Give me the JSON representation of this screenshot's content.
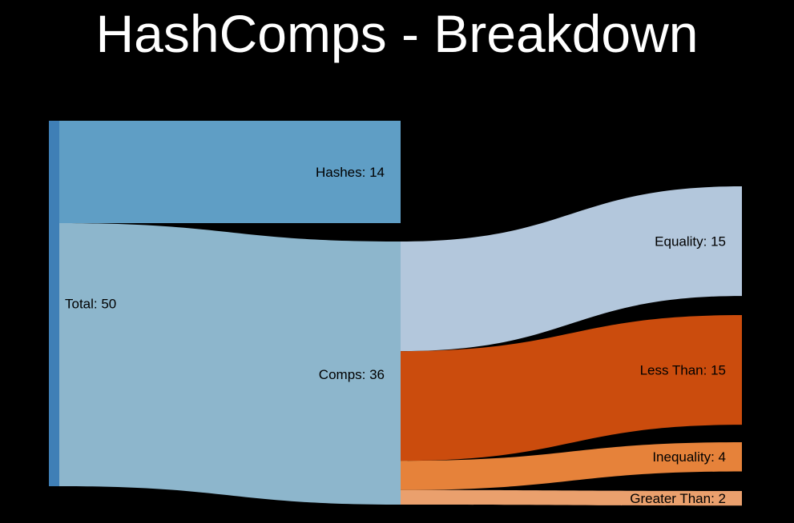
{
  "title": "HashComps - Breakdown",
  "chart_data": {
    "type": "sankey",
    "nodes": [
      {
        "id": "total",
        "label": "Total: 50",
        "value": 50,
        "color": "#3f7fb6"
      },
      {
        "id": "hashes",
        "label": "Hashes: 14",
        "value": 14,
        "color": "#5f9ec5"
      },
      {
        "id": "comps",
        "label": "Comps: 36",
        "value": 36,
        "color": "#8db6cc"
      },
      {
        "id": "equality",
        "label": "Equality: 15",
        "value": 15,
        "color": "#b3c7dc"
      },
      {
        "id": "less_than",
        "label": "Less Than: 15",
        "value": 15,
        "color": "#cb4c0d"
      },
      {
        "id": "inequality",
        "label": "Inequality: 4",
        "value": 4,
        "color": "#e6823a"
      },
      {
        "id": "greater_than",
        "label": "Greater Than: 2",
        "value": 2,
        "color": "#eaa06d"
      }
    ],
    "links": [
      {
        "source": "total",
        "target": "hashes",
        "value": 14
      },
      {
        "source": "total",
        "target": "comps",
        "value": 36
      },
      {
        "source": "comps",
        "target": "equality",
        "value": 15
      },
      {
        "source": "comps",
        "target": "less_than",
        "value": 15
      },
      {
        "source": "comps",
        "target": "inequality",
        "value": 4
      },
      {
        "source": "comps",
        "target": "greater_than",
        "value": 2
      }
    ]
  }
}
